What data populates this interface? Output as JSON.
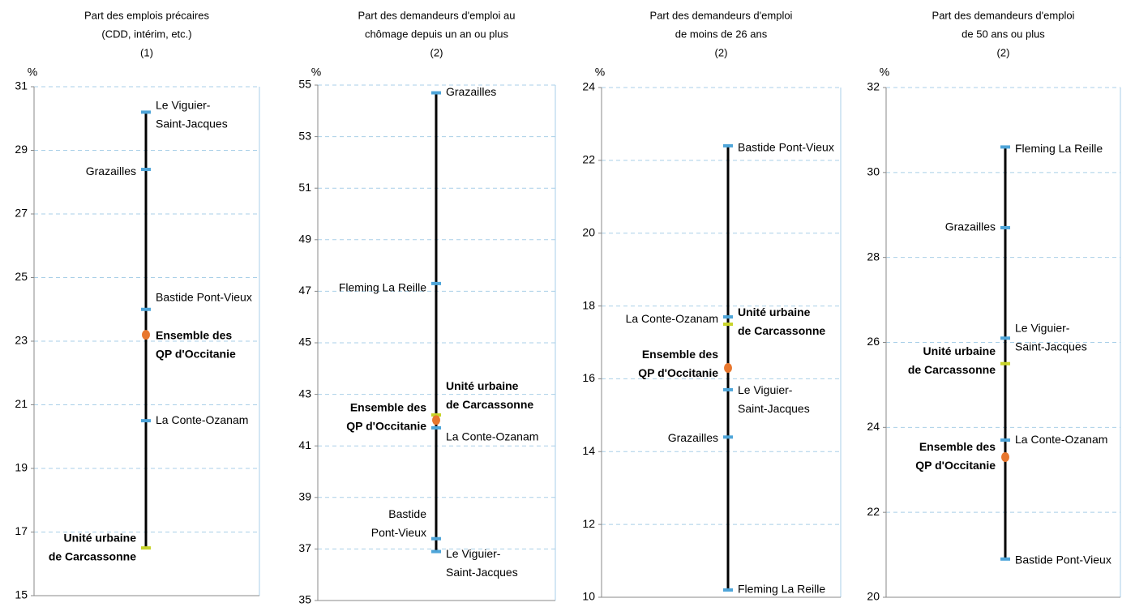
{
  "chart_data": [
    {
      "type": "range",
      "title": [
        "Part des emplois précaires",
        "(CDD, intérim, etc.)",
        "(1)"
      ],
      "unit": "%",
      "ylim": [
        15,
        31
      ],
      "yticks": [
        15,
        17,
        19,
        21,
        23,
        25,
        27,
        29,
        31
      ],
      "grid": true,
      "points": [
        {
          "label": [
            "Le Viguier-",
            "Saint-Jacques"
          ],
          "value": 30.2,
          "color": "#4ea5d9",
          "bold": false
        },
        {
          "label": [
            "Grazailles"
          ],
          "value": 28.4,
          "color": "#4ea5d9",
          "bold": false
        },
        {
          "label": [
            "Bastide Pont-Vieux"
          ],
          "value": 24.0,
          "color": "#4ea5d9",
          "bold": false
        },
        {
          "label": [
            "Ensemble des",
            "QP d'Occitanie"
          ],
          "value": 23.2,
          "color": "#e8772e",
          "bold": true
        },
        {
          "label": [
            "La Conte-Ozanam"
          ],
          "value": 20.5,
          "color": "#4ea5d9",
          "bold": false
        },
        {
          "label": [
            "Unité urbaine",
            "de Carcassonne"
          ],
          "value": 16.5,
          "color": "#c8d42a",
          "bold": true
        }
      ]
    },
    {
      "type": "range",
      "title": [
        "Part des demandeurs d'emploi au",
        "chômage depuis un an ou plus",
        "(2)"
      ],
      "unit": "%",
      "ylim": [
        35,
        55
      ],
      "yticks": [
        35,
        37,
        39,
        41,
        43,
        45,
        47,
        49,
        51,
        53,
        55
      ],
      "grid": true,
      "points": [
        {
          "label": [
            "Grazailles"
          ],
          "value": 54.7,
          "color": "#4ea5d9",
          "bold": false
        },
        {
          "label": [
            "Fleming La Reille"
          ],
          "value": 47.3,
          "color": "#4ea5d9",
          "bold": false
        },
        {
          "label": [
            "Unité urbaine",
            "de Carcassonne"
          ],
          "value": 42.2,
          "color": "#c8d42a",
          "bold": true
        },
        {
          "label": [
            "Ensemble des",
            "QP d'Occitanie"
          ],
          "value": 42.0,
          "color": "#e8772e",
          "bold": true
        },
        {
          "label": [
            "La Conte-Ozanam"
          ],
          "value": 41.7,
          "color": "#4ea5d9",
          "bold": false
        },
        {
          "label": [
            "Bastide",
            "Pont-Vieux"
          ],
          "value": 37.4,
          "color": "#4ea5d9",
          "bold": false
        },
        {
          "label": [
            "Le Viguier-",
            "Saint-Jacques"
          ],
          "value": 36.9,
          "color": "#4ea5d9",
          "bold": false
        }
      ]
    },
    {
      "type": "range",
      "title": [
        "Part des demandeurs d'emploi",
        "de moins de 26 ans",
        "(2)"
      ],
      "unit": "%",
      "ylim": [
        10,
        24
      ],
      "yticks": [
        10,
        12,
        14,
        16,
        18,
        20,
        22,
        24
      ],
      "grid": true,
      "points": [
        {
          "label": [
            "Bastide Pont-Vieux"
          ],
          "value": 22.4,
          "color": "#4ea5d9",
          "bold": false
        },
        {
          "label": [
            "La Conte-Ozanam"
          ],
          "value": 17.7,
          "color": "#4ea5d9",
          "bold": false
        },
        {
          "label": [
            "Unité urbaine",
            "de Carcassonne"
          ],
          "value": 17.5,
          "color": "#c8d42a",
          "bold": true
        },
        {
          "label": [
            "Ensemble des",
            "QP d'Occitanie"
          ],
          "value": 16.3,
          "color": "#e8772e",
          "bold": true
        },
        {
          "label": [
            "Le Viguier-",
            "Saint-Jacques"
          ],
          "value": 15.7,
          "color": "#4ea5d9",
          "bold": false
        },
        {
          "label": [
            "Grazailles"
          ],
          "value": 14.4,
          "color": "#4ea5d9",
          "bold": false
        },
        {
          "label": [
            "Fleming La Reille"
          ],
          "value": 10.2,
          "color": "#4ea5d9",
          "bold": false
        }
      ]
    },
    {
      "type": "range",
      "title": [
        "Part des demandeurs d'emploi",
        "de 50 ans ou plus",
        "(2)"
      ],
      "unit": "%",
      "ylim": [
        20,
        32
      ],
      "yticks": [
        20,
        22,
        24,
        26,
        28,
        30,
        32
      ],
      "grid": true,
      "points": [
        {
          "label": [
            "Fleming La Reille"
          ],
          "value": 30.6,
          "color": "#4ea5d9",
          "bold": false
        },
        {
          "label": [
            "Grazailles"
          ],
          "value": 28.7,
          "color": "#4ea5d9",
          "bold": false
        },
        {
          "label": [
            "Le Viguier-",
            "Saint-Jacques"
          ],
          "value": 26.1,
          "color": "#4ea5d9",
          "bold": false
        },
        {
          "label": [
            "Unité urbaine",
            "de Carcassonne"
          ],
          "value": 25.5,
          "color": "#c8d42a",
          "bold": true
        },
        {
          "label": [
            "La Conte-Ozanam"
          ],
          "value": 23.7,
          "color": "#4ea5d9",
          "bold": false
        },
        {
          "label": [
            "Ensemble des",
            "QP d'Occitanie"
          ],
          "value": 23.3,
          "color": "#e8772e",
          "bold": true
        },
        {
          "label": [
            "Bastide Pont-Vieux"
          ],
          "value": 20.9,
          "color": "#4ea5d9",
          "bold": false
        }
      ]
    }
  ]
}
